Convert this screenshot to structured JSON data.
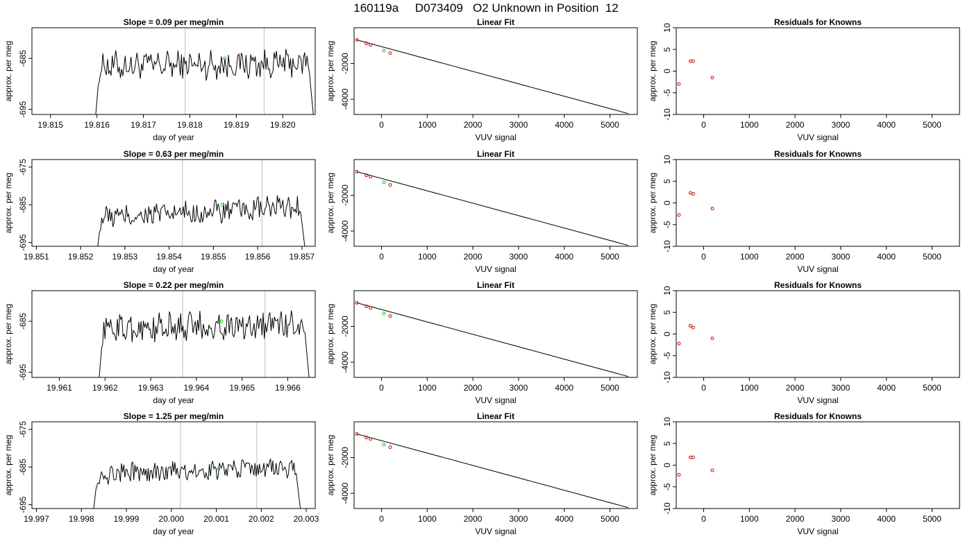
{
  "title": "160119a     D073409   O2 Unknown in Position  12",
  "chart_data": [
    {
      "type": "line",
      "panel": "drift",
      "row": 1,
      "title": "Slope =  0.09  per meg/min",
      "xlabel": "day of year",
      "ylabel": "approx. per meg",
      "xlim": [
        19.8146,
        19.8207
      ],
      "ylim": [
        -696,
        -679
      ],
      "xticks": [
        "19.815",
        "19.816",
        "19.817",
        "19.818",
        "19.819",
        "19.820"
      ],
      "xtick_values": [
        19.815,
        19.816,
        19.817,
        19.818,
        19.819,
        19.82
      ],
      "yticks": [
        "-695",
        "-685"
      ],
      "ytick_values": [
        -695,
        -685
      ],
      "vlines": [
        19.8179,
        19.8196
      ],
      "series_start": 19.8159,
      "series_end": 19.8207,
      "base_level": -686.5,
      "trend": 0.5,
      "noise": 1.6,
      "marker_x": 19.81875,
      "marker_y": -685.0,
      "color_line": "#000000",
      "color_marker": "#00cc00",
      "color_vline": "#c8c8c8"
    },
    {
      "type": "scatter",
      "panel": "fit",
      "row": 1,
      "title": "Linear Fit",
      "xlabel": "VUV signal",
      "ylabel": "approx. per meg",
      "xlim": [
        -600,
        5600
      ],
      "ylim": [
        -4850,
        0
      ],
      "xticks": [
        "0",
        "1000",
        "2000",
        "3000",
        "4000",
        "5000"
      ],
      "yticks": [
        "-2000",
        "-4000"
      ],
      "knowns_x": [
        -540,
        -330,
        -240,
        190
      ],
      "knowns_y": [
        -680,
        -880,
        -960,
        -1420
      ],
      "unknown_x": 50,
      "unknown_y": -1275,
      "line_x": [
        -540,
        5400
      ],
      "line_y": [
        -680,
        -4800
      ],
      "color_points": "#cc0000",
      "color_unknown": "#00cc00"
    },
    {
      "type": "scatter",
      "panel": "residuals",
      "row": 1,
      "title": "Residuals for Knowns",
      "xlabel": "VUV signal",
      "ylabel": "approx. per meg",
      "xlim": [
        -600,
        5600
      ],
      "ylim": [
        -10,
        10
      ],
      "xticks": [
        "0",
        "1000",
        "2000",
        "3000",
        "4000",
        "5000"
      ],
      "yticks": [
        "-10",
        "-5",
        "0",
        "5",
        "10"
      ],
      "x": [
        -540,
        -290,
        -230,
        190
      ],
      "y": [
        -3.0,
        2.3,
        2.3,
        -1.5
      ],
      "color_points": "#cc0000"
    },
    {
      "type": "line",
      "panel": "drift",
      "row": 2,
      "title": "Slope =  0.63  per meg/min",
      "xlabel": "day of year",
      "ylabel": "approx. per meg",
      "xlim": [
        19.8509,
        19.8573
      ],
      "ylim": [
        -696,
        -673
      ],
      "xticks": [
        "19.851",
        "19.852",
        "19.853",
        "19.854",
        "19.855",
        "19.856",
        "19.857"
      ],
      "xtick_values": [
        19.851,
        19.852,
        19.853,
        19.854,
        19.855,
        19.856,
        19.857
      ],
      "yticks": [
        "-695",
        "-685",
        "-675"
      ],
      "ytick_values": [
        -695,
        -685,
        -675
      ],
      "vlines": [
        19.8543,
        19.8561
      ],
      "series_start": 19.8523,
      "series_end": 19.8571,
      "base_level": -688.5,
      "trend": 3.0,
      "noise": 1.8,
      "marker_x": 19.8552,
      "marker_y": -685.0,
      "color_line": "#000000",
      "color_marker": "#00cc00",
      "color_vline": "#c8c8c8"
    },
    {
      "type": "scatter",
      "panel": "fit",
      "row": 2,
      "title": "Linear Fit",
      "xlabel": "VUV signal",
      "ylabel": "approx. per meg",
      "xlim": [
        -600,
        5600
      ],
      "ylim": [
        -4850,
        0
      ],
      "xticks": [
        "0",
        "1000",
        "2000",
        "3000",
        "4000",
        "5000"
      ],
      "yticks": [
        "-2000",
        "-4000"
      ],
      "knowns_x": [
        -540,
        -330,
        -240,
        190
      ],
      "knowns_y": [
        -680,
        -880,
        -960,
        -1420
      ],
      "unknown_x": 50,
      "unknown_y": -1275,
      "line_x": [
        -540,
        5400
      ],
      "line_y": [
        -680,
        -4800
      ],
      "color_points": "#cc0000",
      "color_unknown": "#00cc00"
    },
    {
      "type": "scatter",
      "panel": "residuals",
      "row": 2,
      "title": "Residuals for Knowns",
      "xlabel": "VUV signal",
      "ylabel": "approx. per meg",
      "xlim": [
        -600,
        5600
      ],
      "ylim": [
        -10,
        10
      ],
      "xticks": [
        "0",
        "1000",
        "2000",
        "3000",
        "4000",
        "5000"
      ],
      "yticks": [
        "-10",
        "-5",
        "0",
        "5",
        "10"
      ],
      "x": [
        -540,
        -290,
        -230,
        190
      ],
      "y": [
        -2.8,
        2.3,
        2.1,
        -1.3
      ],
      "color_points": "#cc0000"
    },
    {
      "type": "line",
      "panel": "drift",
      "row": 3,
      "title": "Slope =  0.22  per meg/min",
      "xlabel": "day of year",
      "ylabel": "approx. per meg",
      "xlim": [
        19.9604,
        19.9666
      ],
      "ylim": [
        -696,
        -679
      ],
      "xticks": [
        "19.961",
        "19.962",
        "19.963",
        "19.964",
        "19.965",
        "19.966"
      ],
      "xtick_values": [
        19.961,
        19.962,
        19.963,
        19.964,
        19.965,
        19.966
      ],
      "yticks": [
        "-695",
        "-685"
      ],
      "ytick_values": [
        -695,
        -685
      ],
      "vlines": [
        19.9637,
        19.9655
      ],
      "series_start": 19.9618,
      "series_end": 19.9665,
      "base_level": -686.5,
      "trend": 1.0,
      "noise": 1.6,
      "marker_x": 19.96455,
      "marker_y": -685.0,
      "color_line": "#000000",
      "color_marker": "#00cc00",
      "color_vline": "#c8c8c8"
    },
    {
      "type": "scatter",
      "panel": "fit",
      "row": 3,
      "title": "Linear Fit",
      "xlabel": "VUV signal",
      "ylabel": "approx. per meg",
      "xlim": [
        -600,
        5600
      ],
      "ylim": [
        -4850,
        0
      ],
      "xticks": [
        "0",
        "1000",
        "2000",
        "3000",
        "4000",
        "5000"
      ],
      "yticks": [
        "-2000",
        "-4000"
      ],
      "knowns_x": [
        -540,
        -330,
        -240,
        190
      ],
      "knowns_y": [
        -680,
        -880,
        -960,
        -1420
      ],
      "unknown_x": 50,
      "unknown_y": -1275,
      "line_x": [
        -540,
        5400
      ],
      "line_y": [
        -680,
        -4800
      ],
      "color_points": "#cc0000",
      "color_unknown": "#00cc00"
    },
    {
      "type": "scatter",
      "panel": "residuals",
      "row": 3,
      "title": "Residuals for Knowns",
      "xlabel": "VUV signal",
      "ylabel": "approx. per meg",
      "xlim": [
        -600,
        5600
      ],
      "ylim": [
        -10,
        10
      ],
      "xticks": [
        "0",
        "1000",
        "2000",
        "3000",
        "4000",
        "5000"
      ],
      "yticks": [
        "-10",
        "-5",
        "0",
        "5",
        "10"
      ],
      "x": [
        -540,
        -290,
        -230,
        190
      ],
      "y": [
        -2.2,
        1.9,
        1.5,
        -1.0
      ],
      "color_points": "#cc0000"
    },
    {
      "type": "line",
      "panel": "drift",
      "row": 4,
      "title": "Slope =  1.25  per meg/min",
      "xlabel": "day of year",
      "ylabel": "approx. per meg",
      "xlim": [
        19.9969,
        20.0032
      ],
      "ylim": [
        -696,
        -673
      ],
      "xticks": [
        "19.997",
        "19.998",
        "19.999",
        "20.000",
        "20.001",
        "20.002",
        "20.003"
      ],
      "xtick_values": [
        19.997,
        19.998,
        19.999,
        20.0,
        20.001,
        20.002,
        20.003
      ],
      "yticks": [
        "-695",
        "-685",
        "-675"
      ],
      "ytick_values": [
        -695,
        -685,
        -675
      ],
      "vlines": [
        20.0002,
        20.0019
      ],
      "series_start": 19.9982,
      "series_end": 20.0029,
      "base_level": -687.0,
      "trend": 2.0,
      "noise": 1.5,
      "marker_x": 20.00105,
      "marker_y": -685.5,
      "color_line": "#000000",
      "color_marker": "#00cc00",
      "color_vline": "#c8c8c8"
    },
    {
      "type": "scatter",
      "panel": "fit",
      "row": 4,
      "title": "Linear Fit",
      "xlabel": "VUV signal",
      "ylabel": "approx. per meg",
      "xlim": [
        -600,
        5600
      ],
      "ylim": [
        -4850,
        0
      ],
      "xticks": [
        "0",
        "1000",
        "2000",
        "3000",
        "4000",
        "5000"
      ],
      "yticks": [
        "-2000",
        "-4000"
      ],
      "knowns_x": [
        -540,
        -330,
        -240,
        190
      ],
      "knowns_y": [
        -680,
        -880,
        -960,
        -1420
      ],
      "unknown_x": 50,
      "unknown_y": -1275,
      "line_x": [
        -540,
        5400
      ],
      "line_y": [
        -680,
        -4800
      ],
      "color_points": "#cc0000",
      "color_unknown": "#00cc00"
    },
    {
      "type": "scatter",
      "panel": "residuals",
      "row": 4,
      "title": "Residuals for Knowns",
      "xlabel": "VUV signal",
      "ylabel": "approx. per meg",
      "xlim": [
        -600,
        5600
      ],
      "ylim": [
        -10,
        10
      ],
      "xticks": [
        "0",
        "1000",
        "2000",
        "3000",
        "4000",
        "5000"
      ],
      "yticks": [
        "-10",
        "-5",
        "0",
        "5",
        "10"
      ],
      "x": [
        -540,
        -290,
        -230,
        190
      ],
      "y": [
        -2.2,
        1.8,
        1.8,
        -1.2
      ],
      "color_points": "#cc0000"
    }
  ]
}
